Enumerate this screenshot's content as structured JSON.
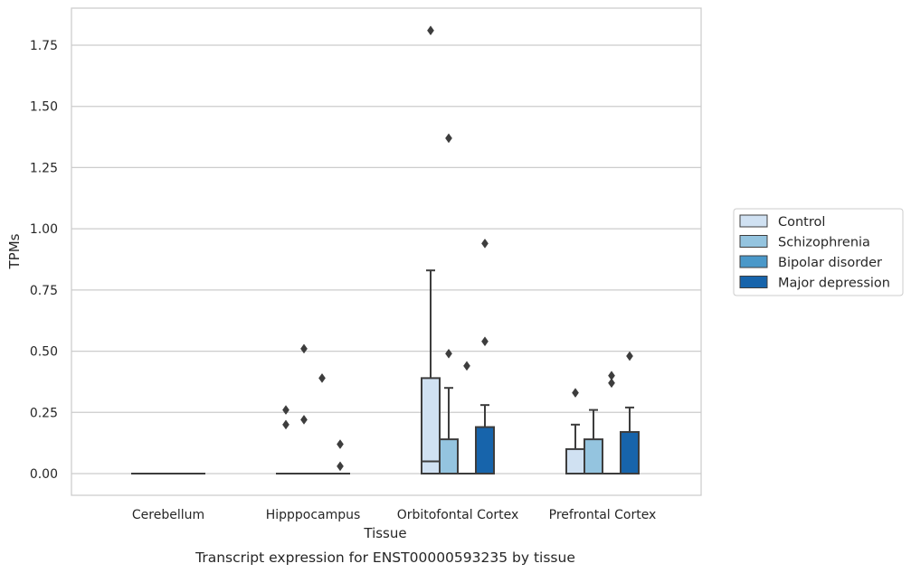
{
  "chart_data": {
    "type": "box",
    "xlabel": "Tissue",
    "ylabel": "TPMs",
    "caption": "Transcript expression for ENST00000593235 by tissue",
    "categories": [
      "Cerebellum",
      "Hipppocampus",
      "Orbitofontal Cortex",
      "Prefrontal Cortex"
    ],
    "ylim": [
      -0.09,
      1.91
    ],
    "yticks": [
      0.0,
      0.25,
      0.5,
      0.75,
      1.0,
      1.25,
      1.5,
      1.75
    ],
    "ytick_labels": [
      "0.00",
      "0.25",
      "0.50",
      "0.75",
      "1.00",
      "1.25",
      "1.50",
      "1.75"
    ],
    "grid": "horizontal",
    "legend_position": "right",
    "series": [
      {
        "name": "Control",
        "color": "#d0e1f2",
        "boxes": [
          {
            "q1": 0,
            "median": 0,
            "q3": 0,
            "whisker_low": 0,
            "whisker_high": 0,
            "outliers": []
          },
          {
            "q1": 0,
            "median": 0,
            "q3": 0,
            "whisker_low": 0,
            "whisker_high": 0,
            "outliers": [
              0.26,
              0.2
            ]
          },
          {
            "q1": 0,
            "median": 0.05,
            "q3": 0.39,
            "whisker_low": 0,
            "whisker_high": 0.83,
            "outliers": [
              1.81
            ]
          },
          {
            "q1": 0,
            "median": 0,
            "q3": 0.1,
            "whisker_low": 0,
            "whisker_high": 0.2,
            "outliers": [
              0.33
            ]
          }
        ]
      },
      {
        "name": "Schizophrenia",
        "color": "#94c4df",
        "boxes": [
          {
            "q1": 0,
            "median": 0,
            "q3": 0,
            "whisker_low": 0,
            "whisker_high": 0,
            "outliers": []
          },
          {
            "q1": 0,
            "median": 0,
            "q3": 0,
            "whisker_low": 0,
            "whisker_high": 0,
            "outliers": [
              0.51,
              0.22
            ]
          },
          {
            "q1": 0,
            "median": 0,
            "q3": 0.14,
            "whisker_low": 0,
            "whisker_high": 0.35,
            "outliers": [
              1.37,
              0.49
            ]
          },
          {
            "q1": 0,
            "median": 0,
            "q3": 0.14,
            "whisker_low": 0,
            "whisker_high": 0.26,
            "outliers": []
          }
        ]
      },
      {
        "name": "Bipolar disorder",
        "color": "#4a98c9",
        "boxes": [
          {
            "q1": 0,
            "median": 0,
            "q3": 0,
            "whisker_low": 0,
            "whisker_high": 0,
            "outliers": []
          },
          {
            "q1": 0,
            "median": 0,
            "q3": 0,
            "whisker_low": 0,
            "whisker_high": 0,
            "outliers": [
              0.39
            ]
          },
          {
            "q1": 0,
            "median": 0,
            "q3": 0,
            "whisker_low": 0,
            "whisker_high": 0,
            "outliers": [
              0.44
            ]
          },
          {
            "q1": 0,
            "median": 0,
            "q3": 0,
            "whisker_low": 0,
            "whisker_high": 0,
            "outliers": [
              0.4,
              0.37
            ]
          }
        ]
      },
      {
        "name": "Major depression",
        "color": "#1764ab",
        "boxes": [
          {
            "q1": 0,
            "median": 0,
            "q3": 0,
            "whisker_low": 0,
            "whisker_high": 0,
            "outliers": []
          },
          {
            "q1": 0,
            "median": 0,
            "q3": 0,
            "whisker_low": 0,
            "whisker_high": 0,
            "outliers": [
              0.12,
              0.03
            ]
          },
          {
            "q1": 0,
            "median": 0,
            "q3": 0.19,
            "whisker_low": 0,
            "whisker_high": 0.28,
            "outliers": [
              0.94,
              0.54
            ]
          },
          {
            "q1": 0,
            "median": 0,
            "q3": 0.17,
            "whisker_low": 0,
            "whisker_high": 0.27,
            "outliers": [
              0.48
            ]
          }
        ]
      }
    ]
  }
}
